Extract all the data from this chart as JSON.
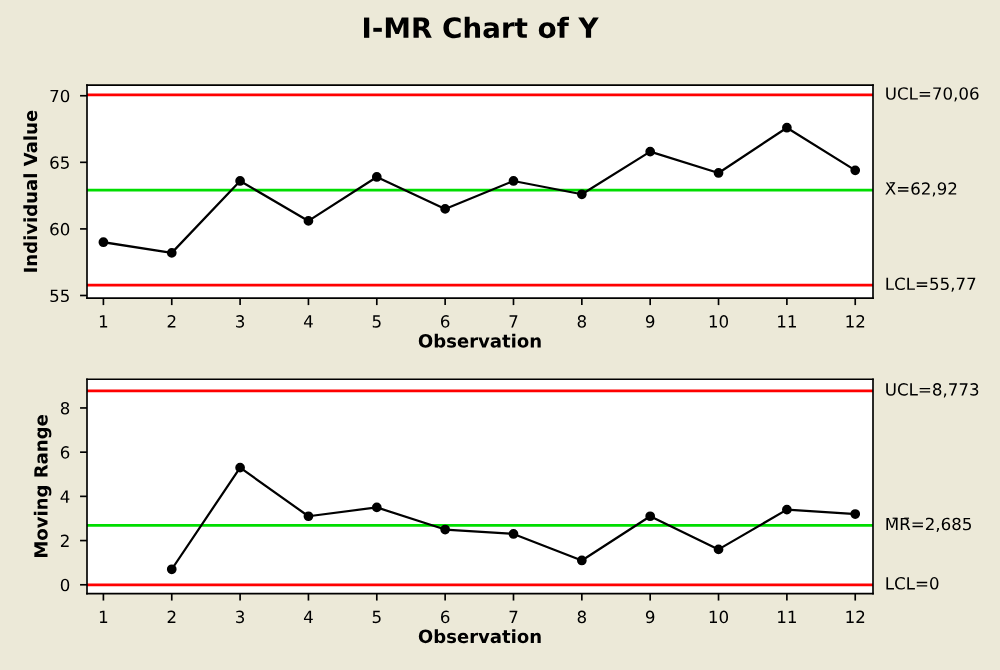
{
  "chart_data": [
    {
      "type": "line",
      "title": "I-MR Chart of Y",
      "xlabel": "Observation",
      "ylabel": "Individual Value",
      "series": [
        {
          "color": "#000000",
          "x": [
            1,
            2,
            3,
            4,
            5,
            6,
            7,
            8,
            9,
            10,
            11,
            12
          ],
          "values": [
            59.0,
            58.2,
            63.6,
            60.6,
            63.9,
            61.5,
            63.6,
            62.6,
            65.8,
            64.2,
            67.6,
            64.4
          ]
        }
      ],
      "xlim": [
        0.76,
        12.26
      ],
      "xticks": [
        1,
        2,
        3,
        4,
        5,
        6,
        7,
        8,
        9,
        10,
        11,
        12
      ],
      "ylim": [
        54.8,
        70.8
      ],
      "yticks": [
        55,
        60,
        65,
        70
      ],
      "ref_lines": [
        {
          "axis": "y",
          "value": 70.06,
          "label": "UCL=70,06",
          "color": "#ff0000"
        },
        {
          "axis": "y",
          "value": 62.92,
          "label": "X̄=62,92",
          "color": "#00dd00"
        },
        {
          "axis": "y",
          "value": 55.77,
          "label": "LCL=55,77",
          "color": "#ff0000"
        }
      ],
      "marker": "circle",
      "line_style": "solid",
      "grid": false,
      "legend": false
    },
    {
      "type": "line",
      "xlabel": "Observation",
      "ylabel": "Moving Range",
      "series": [
        {
          "color": "#000000",
          "x": [
            2,
            3,
            4,
            5,
            6,
            7,
            8,
            9,
            10,
            11,
            12
          ],
          "values": [
            0.7,
            5.3,
            3.1,
            3.5,
            2.5,
            2.3,
            1.1,
            3.1,
            1.6,
            3.4,
            3.2
          ]
        }
      ],
      "xlim": [
        0.76,
        12.26
      ],
      "xticks": [
        1,
        2,
        3,
        4,
        5,
        6,
        7,
        8,
        9,
        10,
        11,
        12
      ],
      "ylim": [
        -0.4,
        9.3
      ],
      "yticks": [
        0,
        2,
        4,
        6,
        8
      ],
      "ref_lines": [
        {
          "axis": "y",
          "value": 8.773,
          "label": "UCL=8,773",
          "color": "#ff0000"
        },
        {
          "axis": "y",
          "value": 2.685,
          "label": "M̄R̄=2,685",
          "color": "#00dd00"
        },
        {
          "axis": "y",
          "value": 0,
          "label": "LCL=0",
          "color": "#ff0000"
        }
      ],
      "marker": "circle",
      "line_style": "solid",
      "grid": false,
      "legend": false
    }
  ]
}
